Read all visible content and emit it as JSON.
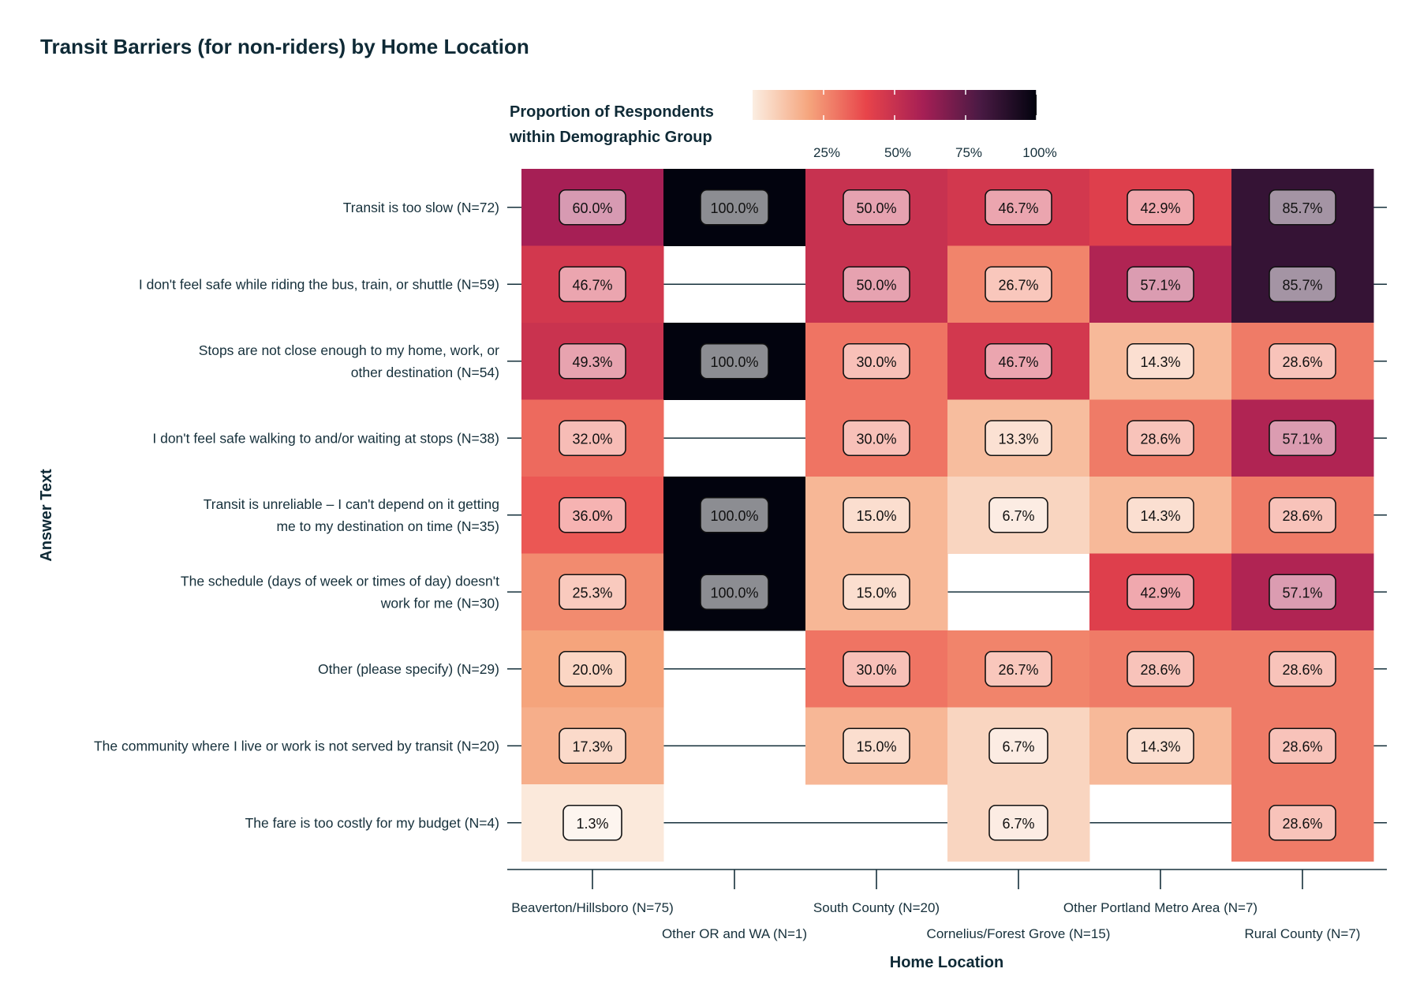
{
  "chart_data": {
    "type": "heatmap",
    "title": "Transit Barriers (for non-riders) by Home Location",
    "xlabel": "Home Location",
    "ylabel": "Answer Text",
    "legend": {
      "title": "Proportion of Respondents\nwithin Demographic Group",
      "placement": "top",
      "ticks": [
        "25%",
        "50%",
        "75%",
        "100%"
      ],
      "range": [
        0,
        100
      ],
      "colorscale": [
        "#fbeee2",
        "#f5a47c",
        "#e8444a",
        "#a61f55",
        "#4a1a44",
        "#02030e"
      ]
    },
    "x_categories": [
      "Beaverton/Hillsboro (N=75)",
      "Other OR and WA (N=1)",
      "South County (N=20)",
      "Cornelius/Forest Grove (N=15)",
      "Other Portland Metro Area (N=7)",
      "Rural County (N=7)"
    ],
    "y_categories": [
      "Transit is too slow (N=72)",
      "I don't feel safe while riding the bus, train, or shuttle (N=59)",
      "Stops are not close enough to my home, work, or other destination (N=54)",
      "I don't feel safe walking to and/or waiting at stops (N=38)",
      "Transit is unreliable – I can't depend on it getting me to my destination on time (N=35)",
      "The schedule (days of week or times of day) doesn't work for me (N=30)",
      "Other (please specify) (N=29)",
      "The community where I live or work is not served by transit (N=20)",
      "The fare is too costly for my budget (N=4)"
    ],
    "values": [
      [
        60.0,
        100.0,
        50.0,
        46.7,
        42.9,
        85.7
      ],
      [
        46.7,
        null,
        50.0,
        26.7,
        57.1,
        85.7
      ],
      [
        49.3,
        100.0,
        30.0,
        46.7,
        14.3,
        28.6
      ],
      [
        32.0,
        null,
        30.0,
        13.3,
        28.6,
        57.1
      ],
      [
        36.0,
        100.0,
        15.0,
        6.7,
        14.3,
        28.6
      ],
      [
        25.3,
        100.0,
        15.0,
        null,
        42.9,
        57.1
      ],
      [
        20.0,
        null,
        30.0,
        26.7,
        28.6,
        28.6
      ],
      [
        17.3,
        null,
        15.0,
        6.7,
        14.3,
        28.6
      ],
      [
        1.3,
        null,
        null,
        6.7,
        null,
        28.6
      ]
    ],
    "cell_labels": [
      [
        "60.0%",
        "100.0%",
        "50.0%",
        "46.7%",
        "42.9%",
        "85.7%"
      ],
      [
        "46.7%",
        "",
        "50.0%",
        "26.7%",
        "57.1%",
        "85.7%"
      ],
      [
        "49.3%",
        "100.0%",
        "30.0%",
        "46.7%",
        "14.3%",
        "28.6%"
      ],
      [
        "32.0%",
        "",
        "30.0%",
        "13.3%",
        "28.6%",
        "57.1%"
      ],
      [
        "36.0%",
        "100.0%",
        "15.0%",
        "6.7%",
        "14.3%",
        "28.6%"
      ],
      [
        "25.3%",
        "100.0%",
        "15.0%",
        "",
        "42.9%",
        "57.1%"
      ],
      [
        "20.0%",
        "",
        "30.0%",
        "26.7%",
        "28.6%",
        "28.6%"
      ],
      [
        "17.3%",
        "",
        "15.0%",
        "6.7%",
        "14.3%",
        "28.6%"
      ],
      [
        "1.3%",
        "",
        "",
        "6.7%",
        "",
        "28.6%"
      ]
    ]
  }
}
